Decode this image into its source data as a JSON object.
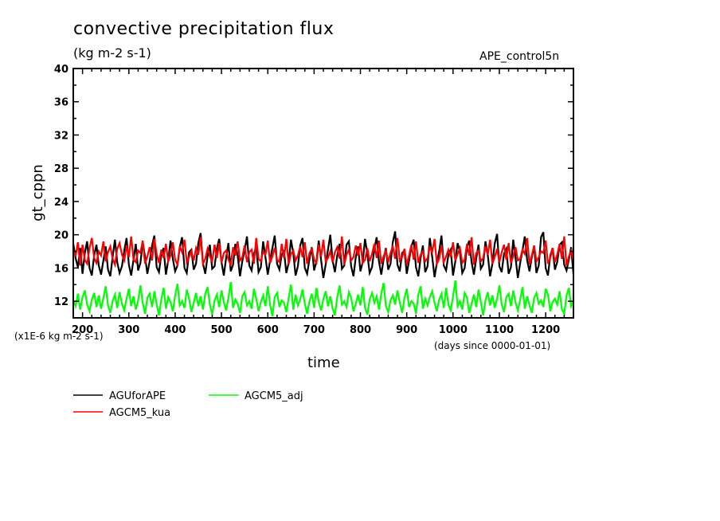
{
  "chart_data": {
    "type": "line",
    "title": "convective precipitation flux",
    "subtitle": "(kg m-2 s-1)",
    "run_label": "APE_control5n",
    "xlabel": "time",
    "ylabel": "gt_cppn",
    "x_units_note": "(days since 0000-01-01)",
    "y_scale_note": "(x1E-6 kg m-2 s-1)",
    "xlim": [
      180,
      1260
    ],
    "ylim": [
      10,
      40
    ],
    "x_ticks": [
      200,
      300,
      400,
      500,
      600,
      700,
      800,
      900,
      1000,
      1100,
      1200
    ],
    "x_tick_labels": [
      "200",
      "300",
      "400",
      "500",
      "600",
      "700",
      "800",
      "900",
      "1000",
      "1100",
      "1200"
    ],
    "y_ticks": [
      12,
      16,
      20,
      24,
      28,
      32,
      36,
      40
    ],
    "y_tick_labels": [
      "12",
      "16",
      "20",
      "24",
      "28",
      "32",
      "36",
      "40"
    ],
    "grid": false,
    "legend_position": "bottom-left",
    "x_start": 180,
    "x_step": 5,
    "series": [
      {
        "name": "AGUforAPE",
        "color": "#000000",
        "values": [
          18.9,
          17.2,
          16.1,
          18.4,
          15.3,
          17.8,
          19.2,
          16.0,
          15.1,
          17.5,
          18.8,
          16.3,
          15.2,
          16.9,
          18.6,
          15.8,
          15.0,
          17.3,
          19.4,
          16.7,
          15.4,
          16.2,
          18.1,
          19.6,
          16.4,
          15.1,
          17.0,
          18.9,
          15.7,
          16.6,
          19.1,
          17.4,
          15.3,
          16.8,
          18.7,
          19.9,
          16.1,
          15.5,
          17.6,
          18.4,
          15.2,
          16.9,
          19.3,
          17.1,
          15.6,
          16.3,
          18.5,
          19.7,
          16.0,
          15.4,
          17.9,
          18.2,
          15.8,
          16.5,
          19.0,
          20.2,
          16.6,
          15.3,
          17.4,
          18.8,
          15.9,
          16.2,
          18.3,
          19.5,
          16.7,
          15.1,
          17.2,
          19.0,
          15.6,
          16.4,
          18.9,
          17.5,
          15.0,
          16.8,
          18.1,
          19.8,
          16.3,
          15.7,
          17.7,
          18.6,
          15.5,
          16.1,
          19.2,
          17.3,
          15.2,
          16.9,
          18.4,
          19.9,
          16.5,
          15.8,
          17.6,
          18.0,
          15.4,
          16.6,
          19.4,
          17.8,
          15.1,
          16.2,
          18.7,
          19.6,
          16.0,
          15.3,
          17.1,
          18.5,
          15.7,
          16.8,
          19.3,
          17.0,
          14.8,
          16.4,
          18.2,
          20.0,
          16.9,
          15.5,
          17.5,
          18.9,
          15.9,
          16.3,
          18.8,
          19.2,
          16.2,
          15.0,
          17.3,
          18.6,
          15.6,
          16.7,
          19.5,
          17.7,
          15.4,
          16.1,
          18.3,
          19.7,
          16.8,
          15.2,
          17.0,
          18.4,
          15.8,
          16.5,
          19.1,
          20.4,
          16.4,
          15.6,
          17.8,
          18.1,
          15.3,
          16.9,
          18.6,
          19.4,
          16.1,
          15.0,
          17.2,
          18.7,
          15.5,
          16.2,
          19.6,
          17.4,
          14.9,
          16.6,
          18.0,
          19.9,
          16.3,
          15.7,
          17.6,
          18.2,
          15.1,
          16.8,
          19.0,
          17.9,
          15.4,
          16.0,
          18.5,
          19.3,
          16.7,
          15.2,
          17.1,
          18.8,
          15.9,
          16.4,
          19.2,
          17.6,
          15.0,
          16.5,
          18.9,
          20.1,
          16.2,
          15.5,
          17.7,
          18.3,
          15.3,
          16.1,
          19.4,
          17.2,
          14.8,
          16.6,
          18.1,
          19.8,
          16.9,
          15.6,
          17.3,
          18.6,
          15.4,
          16.3,
          19.7,
          20.3,
          16.0,
          15.1,
          17.5,
          18.4,
          15.8,
          16.7,
          18.8,
          19.1,
          16.4,
          15.7,
          17.0,
          18.5,
          15.2,
          16.2,
          19.5,
          20.0,
          16.6,
          15.9,
          17.8,
          18.0
        ]
      },
      {
        "name": "AGCM5_kua",
        "color": "#ff0000",
        "values": [
          18.2,
          17.4,
          19.1,
          16.3,
          18.8,
          17.0,
          16.5,
          18.4,
          19.6,
          17.2,
          16.6,
          18.0,
          17.5,
          19.2,
          16.8,
          17.9,
          18.6,
          17.1,
          16.4,
          18.3,
          19.0,
          17.6,
          16.9,
          18.7,
          17.3,
          19.8,
          17.0,
          16.7,
          18.1,
          17.8,
          19.3,
          16.5,
          17.4,
          18.5,
          16.9,
          19.5,
          17.7,
          16.6,
          18.2,
          17.2,
          18.9,
          16.8,
          17.5,
          19.1,
          17.0,
          16.4,
          18.6,
          17.9,
          19.4,
          16.7,
          17.3,
          18.0,
          16.9,
          18.4,
          17.6,
          19.7,
          16.5,
          17.1,
          18.3,
          17.4,
          16.8,
          18.8,
          17.2,
          19.0,
          16.6,
          17.8,
          18.1,
          17.0,
          16.4,
          18.5,
          17.5,
          19.2,
          16.9,
          17.3,
          18.7,
          16.7,
          17.9,
          18.2,
          16.5,
          19.6,
          17.1,
          16.8,
          18.0,
          17.6,
          19.3,
          16.6,
          17.4,
          18.4,
          17.0,
          16.7,
          18.9,
          17.2,
          19.5,
          16.4,
          17.7,
          18.1,
          16.9,
          17.5,
          18.6,
          17.3,
          19.1,
          16.5,
          17.8,
          18.3,
          17.0,
          16.6,
          18.8,
          17.4,
          19.4,
          16.8,
          17.2,
          18.0,
          16.7,
          17.9,
          18.5,
          17.1,
          19.8,
          16.4,
          17.6,
          18.2,
          16.9,
          17.3,
          18.7,
          17.5,
          19.0,
          16.6,
          17.0,
          18.4,
          16.8,
          17.7,
          18.9,
          17.2,
          19.3,
          16.5,
          17.4,
          18.1,
          16.7,
          17.8,
          18.6,
          17.1,
          19.6,
          16.9,
          17.3,
          18.3,
          16.4,
          17.5,
          18.8,
          17.0,
          19.2,
          16.6,
          17.6,
          18.0,
          16.8,
          17.2,
          18.5,
          17.9,
          19.5,
          16.5,
          17.1,
          18.7,
          16.7,
          17.4,
          18.2,
          17.3,
          19.1,
          16.9,
          17.7,
          18.4,
          16.6,
          17.0,
          18.9,
          17.5,
          19.7,
          16.4,
          17.8,
          18.1,
          16.8,
          17.2,
          18.6,
          17.6,
          19.4,
          16.5,
          17.3,
          18.3,
          16.7,
          17.9,
          18.8,
          17.0,
          19.0,
          16.6,
          17.4,
          18.5,
          16.9,
          17.1,
          18.2,
          17.7,
          19.6,
          16.4,
          17.5,
          18.7,
          16.8,
          17.3,
          18.0,
          17.8,
          19.3,
          16.5,
          17.2,
          18.4,
          16.7,
          17.6,
          18.9,
          17.1,
          19.8,
          16.3,
          17.4,
          18.1,
          16.9,
          17.0,
          18.6,
          17.5
        ]
      },
      {
        "name": "AGCM5_adj",
        "color": "#00ff00",
        "values": [
          12.1,
          11.4,
          12.9,
          11.0,
          12.5,
          13.3,
          11.6,
          10.8,
          12.2,
          13.0,
          11.3,
          12.7,
          11.1,
          12.4,
          13.8,
          11.5,
          10.6,
          12.0,
          12.8,
          11.2,
          13.1,
          11.7,
          10.9,
          12.3,
          13.5,
          11.4,
          12.6,
          11.0,
          12.1,
          13.9,
          11.8,
          10.5,
          12.4,
          12.9,
          11.3,
          13.2,
          11.6,
          10.3,
          12.2,
          13.6,
          11.1,
          12.5,
          11.9,
          10.8,
          12.7,
          14.1,
          11.5,
          12.0,
          11.2,
          13.4,
          12.3,
          10.7,
          11.8,
          13.0,
          11.4,
          12.6,
          11.0,
          12.9,
          13.7,
          11.6,
          10.4,
          12.1,
          12.8,
          11.3,
          13.3,
          11.9,
          10.9,
          12.4,
          14.3,
          11.2,
          12.2,
          11.7,
          10.6,
          12.6,
          13.1,
          11.5,
          12.0,
          11.1,
          13.5,
          12.3,
          10.8,
          11.9,
          12.7,
          11.4,
          13.8,
          11.6,
          10.2,
          12.5,
          13.0,
          11.3,
          12.1,
          11.8,
          10.7,
          12.4,
          14.0,
          11.0,
          12.8,
          11.5,
          12.2,
          13.4,
          11.7,
          10.5,
          12.0,
          12.9,
          11.2,
          13.6,
          11.9,
          10.9,
          12.3,
          13.2,
          11.4,
          12.6,
          11.1,
          10.3,
          12.5,
          13.9,
          11.6,
          12.0,
          11.3,
          13.1,
          12.4,
          10.8,
          11.7,
          12.8,
          11.5,
          13.7,
          11.2,
          10.4,
          12.2,
          13.0,
          11.8,
          12.6,
          11.0,
          12.9,
          14.2,
          11.4,
          10.7,
          12.1,
          12.7,
          11.6,
          13.3,
          11.9,
          10.6,
          12.4,
          13.5,
          11.3,
          12.0,
          11.7,
          10.5,
          12.8,
          13.8,
          11.1,
          12.3,
          11.5,
          12.5,
          13.2,
          11.8,
          10.8,
          12.2,
          12.9,
          11.2,
          13.6,
          11.6,
          10.9,
          12.6,
          14.5,
          11.4,
          12.0,
          11.0,
          13.0,
          12.4,
          10.6,
          11.7,
          12.8,
          11.3,
          13.4,
          11.9,
          10.3,
          12.1,
          13.1,
          11.5,
          12.7,
          11.2,
          12.3,
          13.9,
          11.6,
          10.7,
          12.5,
          12.9,
          11.4,
          13.3,
          11.8,
          10.9,
          12.2,
          13.7,
          11.1,
          12.6,
          11.5,
          10.6,
          12.4,
          13.0,
          11.7,
          12.1,
          11.3,
          13.5,
          12.8,
          10.8,
          11.9,
          12.3,
          11.6,
          13.2,
          11.0,
          10.5,
          12.7,
          13.6,
          11.4,
          12.0,
          11.8,
          12.5,
          14.0
        ]
      }
    ]
  },
  "legend": [
    {
      "label": "AGUforAPE",
      "color": "#000000"
    },
    {
      "label": "AGCM5_kua",
      "color": "#ff0000"
    },
    {
      "label": "AGCM5_adj",
      "color": "#00ff00"
    }
  ]
}
